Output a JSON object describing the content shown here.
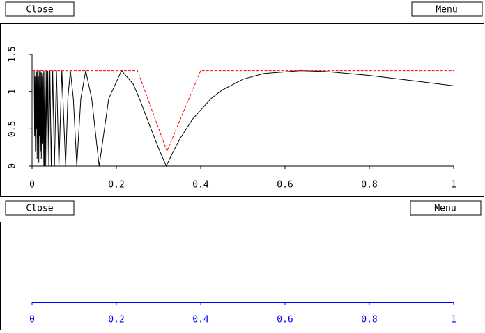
{
  "toolbar_top": {
    "close": "Close",
    "menu": "Menu"
  },
  "toolbar_bottom": {
    "close": "Close",
    "menu": "Menu"
  },
  "chart_data": [
    {
      "type": "line",
      "xlim": [
        0,
        1
      ],
      "xticks": [
        0,
        0.2,
        0.4,
        0.6,
        0.8,
        1
      ],
      "ylim": [
        0,
        1.5
      ],
      "yticks": [
        0,
        0.5,
        1,
        1.5
      ],
      "axis_color": "#000000",
      "series": [
        {
          "color": "#000000",
          "dashed": false,
          "x": [
            0.005,
            0.006,
            0.007,
            0.008,
            0.009,
            0.01,
            0.011,
            0.012,
            0.013,
            0.014,
            0.015,
            0.016,
            0.017,
            0.018,
            0.019,
            0.02,
            0.021,
            0.022,
            0.023,
            0.024,
            0.025,
            0.0265,
            0.0277,
            0.0289,
            0.0303,
            0.0318,
            0.0335,
            0.0354,
            0.0374,
            0.0398,
            0.0424,
            0.0455,
            0.049,
            0.0531,
            0.0579,
            0.0637,
            0.0707,
            0.0796,
            0.0849,
            0.0909,
            0.0979,
            0.1061,
            0.1157,
            0.1273,
            0.1415,
            0.1592,
            0.1819,
            0.2122,
            0.24,
            0.2546,
            0.28,
            0.3,
            0.3183,
            0.33,
            0.35,
            0.38,
            0.4244,
            0.45,
            0.5,
            0.55,
            0.6366,
            0.7,
            0.8,
            0.9,
            1
          ],
          "values": [
            1.28,
            0.4,
            1.2,
            0.2,
            1.28,
            0.5,
            1.27,
            0.1,
            1.28,
            0.3,
            1.2,
            0.05,
            1.28,
            0.4,
            1.1,
            0.2,
            1.27,
            0.1,
            1.25,
            0.3,
            1.2,
            0,
            1.28,
            0,
            1.28,
            0,
            1.28,
            0,
            1.28,
            0,
            1.28,
            0,
            1.28,
            0,
            1.28,
            0,
            1.28,
            0,
            0.905,
            1.28,
            0.905,
            0,
            0.905,
            1.28,
            0.905,
            0,
            0.905,
            1.28,
            1.1,
            0.905,
            0.532,
            0.243,
            0,
            0.142,
            0.36,
            0.625,
            0.905,
            1.017,
            1.164,
            1.241,
            1.28,
            1.267,
            1.215,
            1.147,
            1.077
          ]
        },
        {
          "color": "#ff0000",
          "dashed": true,
          "x": [
            0,
            0.25,
            0.32,
            0.4,
            1
          ],
          "values": [
            1.28,
            1.28,
            0.2,
            1.28,
            1.28
          ]
        }
      ]
    },
    {
      "type": "axis",
      "xlim": [
        0,
        1
      ],
      "xticks": [
        0,
        0.2,
        0.4,
        0.6,
        0.8,
        1
      ],
      "axis_color": "#0000ff"
    }
  ]
}
